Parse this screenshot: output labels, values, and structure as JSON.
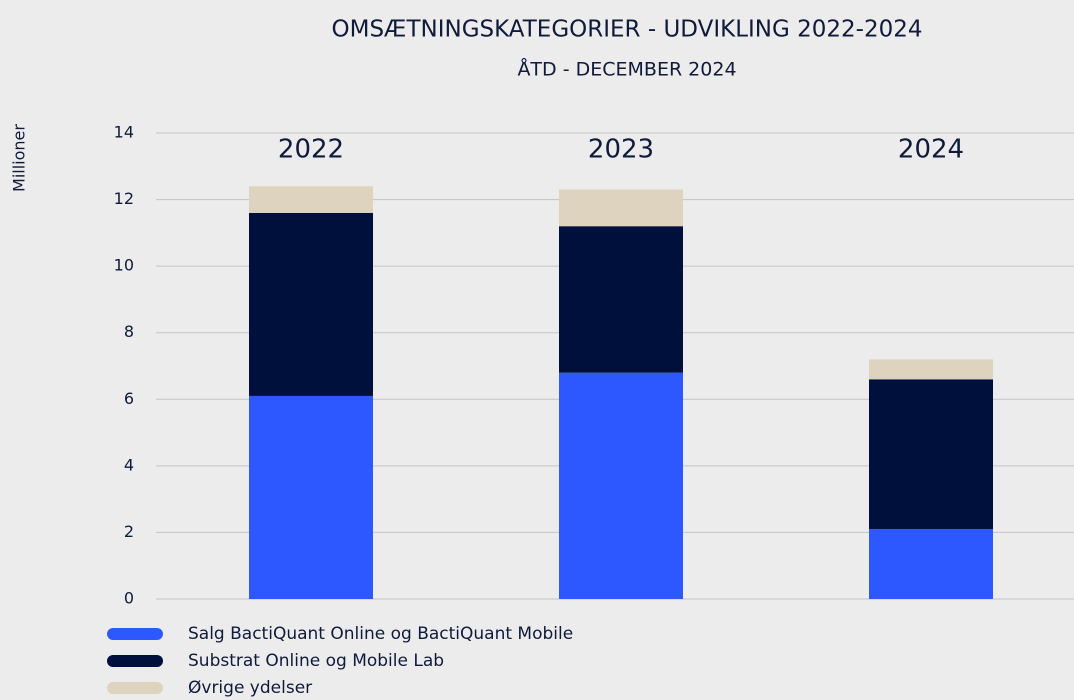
{
  "chart_data": {
    "type": "stacked_bar",
    "title": "OMSÆTNINGSKATEGORIER - UDVIKLING 2022-2024",
    "subtitle": "ÅTD - DECEMBER 2024",
    "y_label": "Millioner",
    "categories": [
      "2022",
      "2023",
      "2024"
    ],
    "series": [
      {
        "name": "Salg BactiQuant Online og BactiQuant Mobile",
        "color": "#2e58ff",
        "values": [
          6.1,
          6.8,
          2.1
        ]
      },
      {
        "name": "Substrat Online og Mobile Lab",
        "color": "#00103d",
        "values": [
          5.5,
          4.4,
          4.5
        ]
      },
      {
        "name": "Øvrige ydelser",
        "color": "#ddd3bf",
        "values": [
          0.8,
          1.1,
          0.6
        ]
      }
    ],
    "ylim": [
      0,
      14
    ],
    "yticks": [
      0,
      2,
      4,
      6,
      8,
      10,
      12,
      14
    ],
    "grid": true
  }
}
